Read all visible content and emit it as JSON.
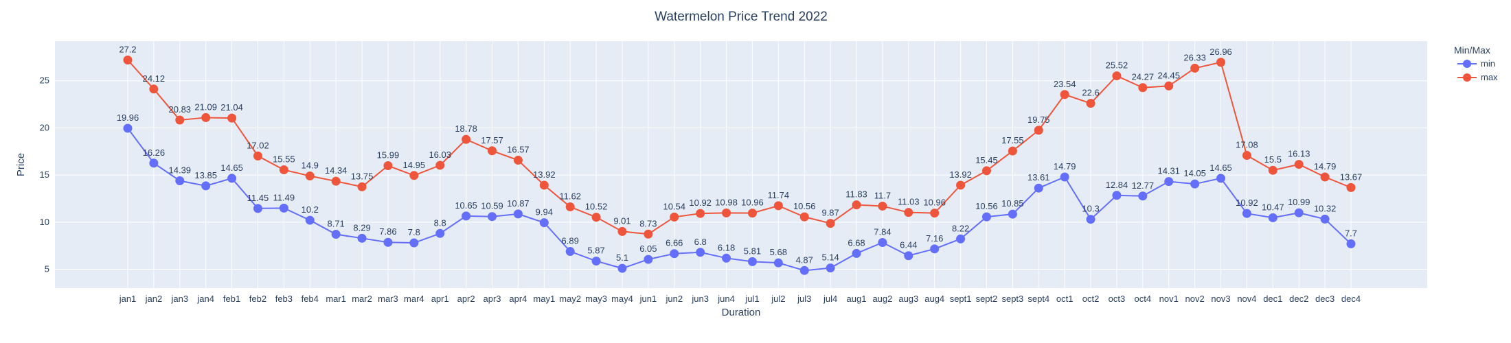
{
  "chart_data": {
    "type": "line",
    "title": "Watermelon Price Trend 2022",
    "xlabel": "Duration",
    "ylabel": "Price",
    "ylim": [
      3.0,
      29.2
    ],
    "yticks": [
      5,
      10,
      15,
      20,
      25
    ],
    "grid": true,
    "legend_title": "Min/Max",
    "legend_position": "top-right",
    "categories": [
      "jan1",
      "jan2",
      "jan3",
      "jan4",
      "feb1",
      "feb2",
      "feb3",
      "feb4",
      "mar1",
      "mar2",
      "mar3",
      "mar4",
      "apr1",
      "apr2",
      "apr3",
      "apr4",
      "may1",
      "may2",
      "may3",
      "may4",
      "jun1",
      "jun2",
      "jun3",
      "jun4",
      "jul1",
      "jul2",
      "jul3",
      "jul4",
      "aug1",
      "aug2",
      "aug3",
      "aug4",
      "sept1",
      "sept2",
      "sept3",
      "sept4",
      "oct1",
      "oct2",
      "oct3",
      "oct4",
      "nov1",
      "nov2",
      "nov3",
      "nov4",
      "dec1",
      "dec2",
      "dec3",
      "dec4"
    ],
    "series": [
      {
        "name": "min",
        "color": "#636efa",
        "values": [
          19.96,
          16.26,
          14.39,
          13.85,
          14.65,
          11.45,
          11.49,
          10.2,
          8.71,
          8.29,
          7.86,
          7.8,
          8.8,
          10.65,
          10.59,
          10.87,
          9.94,
          6.89,
          5.87,
          5.1,
          6.05,
          6.66,
          6.8,
          6.18,
          5.81,
          5.68,
          4.87,
          5.14,
          6.68,
          7.84,
          6.44,
          7.16,
          8.22,
          10.56,
          10.85,
          13.61,
          14.79,
          10.3,
          12.84,
          12.77,
          14.31,
          14.05,
          14.65,
          10.92,
          10.47,
          10.99,
          10.32,
          7.7
        ]
      },
      {
        "name": "max",
        "color": "#ef553b",
        "values": [
          27.2,
          24.12,
          20.83,
          21.09,
          21.04,
          17.02,
          15.55,
          14.9,
          14.34,
          13.75,
          15.99,
          14.95,
          16.03,
          18.78,
          17.57,
          16.57,
          13.92,
          11.62,
          10.52,
          9.01,
          8.73,
          10.54,
          10.92,
          10.98,
          10.96,
          11.74,
          10.56,
          9.87,
          11.83,
          11.7,
          11.03,
          10.96,
          13.92,
          15.45,
          17.55,
          19.75,
          23.54,
          22.6,
          25.52,
          24.27,
          24.45,
          26.33,
          26.96,
          17.08,
          15.5,
          16.13,
          14.79,
          13.67
        ]
      }
    ]
  },
  "colors": {
    "plot_background": "#e5ecf6",
    "grid": "#ffffff",
    "text": "#2a3f5f"
  }
}
